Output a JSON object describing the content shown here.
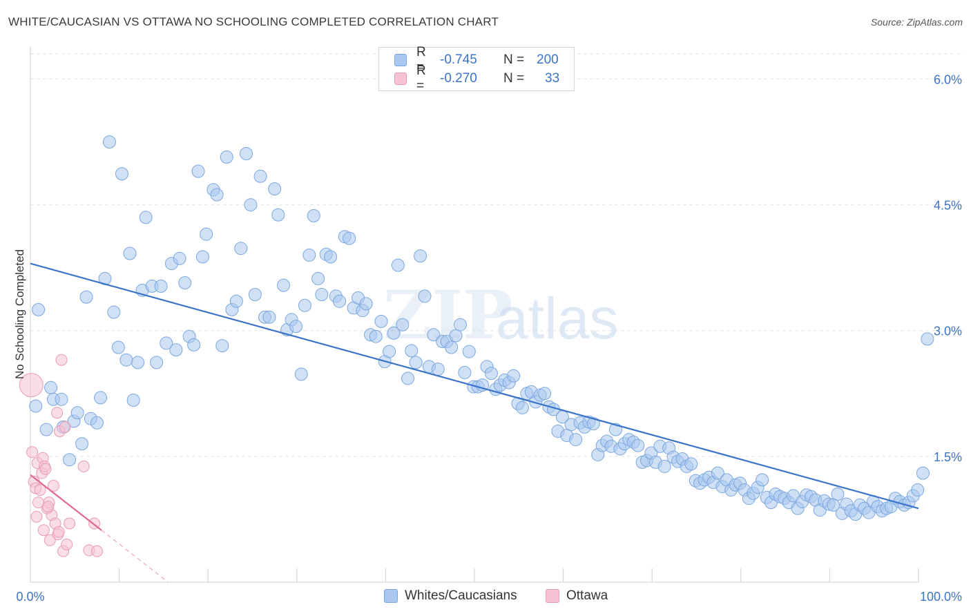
{
  "header": {
    "title": "WHITE/CAUCASIAN VS OTTAWA NO SCHOOLING COMPLETED CORRELATION CHART",
    "source": "Source: ZipAtlas.com"
  },
  "watermark": {
    "part1": "ZIP",
    "part2": "atlas"
  },
  "legend": {
    "items": [
      {
        "r_label": "R =",
        "r_value": "-0.745",
        "n_label": "N =",
        "n_value": "200",
        "color": "#aac8ef",
        "border": "#7aa6de"
      },
      {
        "r_label": "R =",
        "r_value": "-0.270",
        "n_label": "N =",
        "n_value": "33",
        "color": "#f6c3d3",
        "border": "#e79ab4"
      }
    ]
  },
  "bottom_legend": [
    {
      "label": "Whites/Caucasians",
      "color": "#aac8ef",
      "border": "#7aa6de"
    },
    {
      "label": "Ottawa",
      "color": "#f6c3d3",
      "border": "#e79ab4"
    }
  ],
  "chart_data": {
    "type": "scatter",
    "title": "WHITE/CAUCASIAN VS OTTAWA NO SCHOOLING COMPLETED CORRELATION CHART",
    "ylabel": "No Schooling Completed",
    "xlabel": "",
    "xlim": [
      0,
      100
    ],
    "ylim": [
      0,
      6.3
    ],
    "x_tick_labels": [
      "0.0%",
      "100.0%"
    ],
    "y_ticks": [
      1.5,
      3.0,
      4.5,
      6.0
    ],
    "y_tick_labels": [
      "1.5%",
      "3.0%",
      "4.5%",
      "6.0%"
    ],
    "grid": true,
    "legend_position": "top-center",
    "colors": {
      "whites": "#7aa6de",
      "whites_fill": "#aac8ef",
      "whites_line": "#3b73c8",
      "ottawa": "#e79ab4",
      "ottawa_fill": "#f6c3d3",
      "ottawa_line": "#e06890"
    },
    "series": [
      {
        "name": "Whites/Caucasians",
        "trend": {
          "x": [
            0,
            100
          ],
          "y": [
            3.8,
            0.88
          ]
        },
        "points": [
          [
            0.6,
            2.1
          ],
          [
            0.9,
            3.25
          ],
          [
            1.8,
            1.82
          ],
          [
            2.3,
            2.32
          ],
          [
            2.6,
            2.18
          ],
          [
            3.5,
            2.18
          ],
          [
            3.7,
            1.85
          ],
          [
            4.4,
            1.46
          ],
          [
            4.9,
            1.92
          ],
          [
            5.3,
            2.02
          ],
          [
            5.8,
            1.65
          ],
          [
            6.3,
            3.4
          ],
          [
            6.8,
            1.95
          ],
          [
            7.5,
            1.9
          ],
          [
            7.9,
            2.2
          ],
          [
            8.4,
            3.62
          ],
          [
            8.9,
            5.25
          ],
          [
            9.4,
            3.22
          ],
          [
            9.9,
            2.8
          ],
          [
            10.3,
            4.87
          ],
          [
            10.8,
            2.65
          ],
          [
            11.2,
            3.92
          ],
          [
            11.6,
            2.17
          ],
          [
            12.1,
            2.62
          ],
          [
            12.6,
            3.48
          ],
          [
            13.0,
            4.35
          ],
          [
            13.7,
            3.53
          ],
          [
            14.2,
            2.62
          ],
          [
            14.7,
            3.53
          ],
          [
            15.3,
            2.85
          ],
          [
            15.9,
            3.8
          ],
          [
            16.4,
            2.77
          ],
          [
            16.8,
            3.86
          ],
          [
            17.4,
            3.57
          ],
          [
            17.9,
            2.93
          ],
          [
            18.4,
            2.83
          ],
          [
            18.9,
            4.9
          ],
          [
            19.4,
            3.88
          ],
          [
            19.8,
            4.15
          ],
          [
            20.6,
            4.68
          ],
          [
            21.0,
            4.62
          ],
          [
            21.6,
            2.82
          ],
          [
            22.1,
            5.07
          ],
          [
            22.7,
            3.25
          ],
          [
            23.2,
            3.35
          ],
          [
            23.7,
            3.98
          ],
          [
            24.3,
            5.11
          ],
          [
            24.8,
            4.5
          ],
          [
            25.3,
            3.43
          ],
          [
            25.9,
            4.84
          ],
          [
            26.4,
            3.16
          ],
          [
            26.9,
            3.16
          ],
          [
            27.5,
            4.69
          ],
          [
            27.9,
            4.38
          ],
          [
            28.5,
            3.54
          ],
          [
            28.9,
            3.01
          ],
          [
            29.4,
            3.13
          ],
          [
            29.9,
            3.05
          ],
          [
            30.5,
            2.48
          ],
          [
            30.9,
            3.3
          ],
          [
            31.4,
            3.9
          ],
          [
            31.9,
            4.37
          ],
          [
            32.4,
            3.62
          ],
          [
            32.8,
            3.43
          ],
          [
            33.3,
            3.91
          ],
          [
            33.8,
            3.88
          ],
          [
            34.4,
            3.41
          ],
          [
            34.8,
            3.35
          ],
          [
            35.4,
            4.12
          ],
          [
            35.9,
            4.1
          ],
          [
            36.4,
            3.27
          ],
          [
            36.9,
            3.39
          ],
          [
            37.4,
            3.24
          ],
          [
            37.8,
            3.32
          ],
          [
            38.3,
            2.95
          ],
          [
            38.9,
            2.93
          ],
          [
            39.5,
            3.11
          ],
          [
            39.9,
            2.63
          ],
          [
            40.4,
            2.75
          ],
          [
            40.9,
            2.97
          ],
          [
            41.4,
            3.78
          ],
          [
            41.9,
            3.07
          ],
          [
            42.5,
            2.43
          ],
          [
            42.9,
            2.76
          ],
          [
            43.4,
            2.62
          ],
          [
            43.9,
            3.89
          ],
          [
            44.4,
            3.41
          ],
          [
            44.9,
            2.57
          ],
          [
            45.4,
            2.95
          ],
          [
            45.9,
            2.54
          ],
          [
            46.4,
            2.87
          ],
          [
            46.9,
            2.87
          ],
          [
            47.4,
            2.8
          ],
          [
            47.9,
            2.94
          ],
          [
            48.4,
            3.07
          ],
          [
            48.9,
            2.5
          ],
          [
            49.4,
            2.75
          ],
          [
            49.9,
            2.33
          ],
          [
            50.4,
            2.33
          ],
          [
            50.9,
            2.35
          ],
          [
            51.4,
            2.57
          ],
          [
            51.9,
            2.49
          ],
          [
            52.4,
            2.3
          ],
          [
            52.9,
            2.35
          ],
          [
            53.4,
            2.41
          ],
          [
            53.9,
            2.38
          ],
          [
            54.4,
            2.46
          ],
          [
            54.9,
            2.13
          ],
          [
            55.4,
            2.08
          ],
          [
            55.9,
            2.25
          ],
          [
            56.4,
            2.27
          ],
          [
            56.9,
            2.15
          ],
          [
            57.4,
            2.23
          ],
          [
            57.9,
            2.25
          ],
          [
            58.4,
            2.09
          ],
          [
            58.9,
            2.06
          ],
          [
            59.4,
            1.8
          ],
          [
            59.9,
            1.97
          ],
          [
            60.4,
            1.75
          ],
          [
            60.9,
            1.88
          ],
          [
            61.4,
            1.7
          ],
          [
            61.9,
            1.9
          ],
          [
            62.4,
            1.85
          ],
          [
            62.9,
            1.91
          ],
          [
            63.4,
            1.89
          ],
          [
            63.9,
            1.52
          ],
          [
            64.4,
            1.63
          ],
          [
            64.9,
            1.68
          ],
          [
            65.4,
            1.62
          ],
          [
            65.9,
            1.82
          ],
          [
            66.4,
            1.59
          ],
          [
            66.9,
            1.65
          ],
          [
            67.4,
            1.7
          ],
          [
            67.9,
            1.67
          ],
          [
            68.4,
            1.63
          ],
          [
            68.9,
            1.43
          ],
          [
            69.4,
            1.45
          ],
          [
            69.9,
            1.54
          ],
          [
            70.4,
            1.43
          ],
          [
            70.9,
            1.62
          ],
          [
            71.4,
            1.38
          ],
          [
            71.9,
            1.6
          ],
          [
            72.4,
            1.49
          ],
          [
            72.9,
            1.44
          ],
          [
            73.4,
            1.47
          ],
          [
            73.9,
            1.38
          ],
          [
            74.4,
            1.41
          ],
          [
            74.9,
            1.21
          ],
          [
            75.4,
            1.18
          ],
          [
            75.9,
            1.22
          ],
          [
            76.4,
            1.25
          ],
          [
            76.9,
            1.19
          ],
          [
            77.4,
            1.3
          ],
          [
            77.9,
            1.14
          ],
          [
            78.4,
            1.22
          ],
          [
            78.9,
            1.1
          ],
          [
            79.4,
            1.16
          ],
          [
            79.9,
            1.18
          ],
          [
            80.4,
            1.1
          ],
          [
            80.9,
            1.0
          ],
          [
            81.4,
            1.06
          ],
          [
            81.9,
            1.13
          ],
          [
            82.4,
            1.22
          ],
          [
            82.9,
            1.01
          ],
          [
            83.4,
            0.95
          ],
          [
            83.9,
            1.05
          ],
          [
            84.4,
            1.02
          ],
          [
            84.9,
            1.0
          ],
          [
            85.4,
            0.95
          ],
          [
            85.9,
            1.03
          ],
          [
            86.4,
            0.88
          ],
          [
            86.9,
            0.96
          ],
          [
            87.4,
            1.04
          ],
          [
            87.9,
            1.02
          ],
          [
            88.4,
            0.98
          ],
          [
            88.9,
            0.86
          ],
          [
            89.4,
            0.97
          ],
          [
            89.9,
            0.93
          ],
          [
            90.4,
            0.92
          ],
          [
            90.9,
            1.05
          ],
          [
            91.4,
            0.82
          ],
          [
            91.9,
            0.93
          ],
          [
            92.4,
            0.85
          ],
          [
            92.9,
            0.81
          ],
          [
            93.4,
            0.92
          ],
          [
            93.9,
            0.88
          ],
          [
            94.4,
            0.83
          ],
          [
            94.9,
            0.96
          ],
          [
            95.4,
            0.9
          ],
          [
            95.9,
            0.85
          ],
          [
            96.4,
            0.88
          ],
          [
            96.9,
            0.9
          ],
          [
            97.4,
            1.0
          ],
          [
            97.9,
            0.96
          ],
          [
            98.4,
            0.92
          ],
          [
            98.9,
            0.95
          ],
          [
            99.4,
            1.03
          ],
          [
            99.9,
            1.1
          ],
          [
            100.5,
            1.3
          ],
          [
            101,
            2.9
          ]
        ]
      },
      {
        "name": "Ottawa",
        "trend": {
          "x": [
            0,
            8
          ],
          "y": [
            1.28,
            0.62
          ]
        },
        "trend_extension": {
          "x": [
            8,
            15.5
          ],
          "y": [
            0.62,
            0.0
          ]
        },
        "points": [
          [
            0.1,
            2.35
          ],
          [
            0.2,
            1.55
          ],
          [
            0.4,
            1.2
          ],
          [
            0.6,
            1.12
          ],
          [
            0.8,
            1.42
          ],
          [
            0.9,
            0.95
          ],
          [
            1.1,
            1.1
          ],
          [
            1.3,
            1.3
          ],
          [
            1.4,
            1.48
          ],
          [
            1.6,
            1.38
          ],
          [
            1.7,
            1.35
          ],
          [
            1.9,
            0.88
          ],
          [
            2.1,
            0.95
          ],
          [
            2.2,
            0.5
          ],
          [
            2.4,
            0.8
          ],
          [
            2.6,
            1.15
          ],
          [
            2.8,
            0.7
          ],
          [
            3.0,
            2.02
          ],
          [
            3.1,
            0.57
          ],
          [
            3.3,
            1.8
          ],
          [
            3.5,
            2.65
          ],
          [
            3.7,
            0.37
          ],
          [
            3.9,
            1.85
          ],
          [
            4.1,
            0.45
          ],
          [
            4.4,
            0.7
          ],
          [
            6.0,
            1.38
          ],
          [
            6.6,
            0.38
          ],
          [
            0.7,
            0.78
          ],
          [
            1.5,
            0.62
          ],
          [
            2.0,
            0.9
          ],
          [
            3.2,
            0.6
          ],
          [
            7.2,
            0.7
          ],
          [
            7.5,
            0.37
          ]
        ]
      }
    ]
  }
}
